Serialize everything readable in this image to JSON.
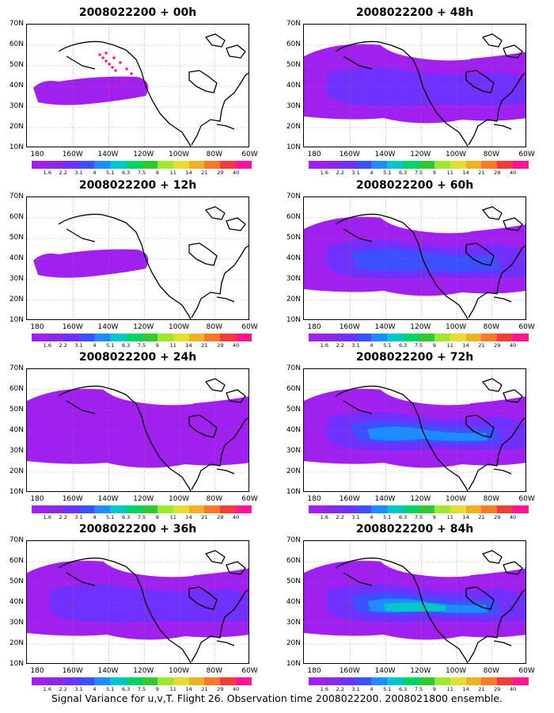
{
  "panels": [
    {
      "title": "2008022200 + 00h",
      "level": 0
    },
    {
      "title": "2008022200 + 48h",
      "level": 2
    },
    {
      "title": "2008022200 + 12h",
      "level": 0
    },
    {
      "title": "2008022200 + 60h",
      "level": 3
    },
    {
      "title": "2008022200 + 24h",
      "level": 1
    },
    {
      "title": "2008022200 + 72h",
      "level": 4
    },
    {
      "title": "2008022200 + 36h",
      "level": 2
    },
    {
      "title": "2008022200 + 84h",
      "level": 5
    }
  ],
  "lat_labels": [
    "70N",
    "60N",
    "50N",
    "40N",
    "30N",
    "20N",
    "10N"
  ],
  "lon_labels": [
    "180",
    "160W",
    "140W",
    "120W",
    "100W",
    "80W",
    "60W"
  ],
  "colorbar": {
    "labels": [
      "1.6",
      "2.2",
      "3.1",
      "4",
      "5.1",
      "6.3",
      "7.5",
      "9",
      "11",
      "14",
      "21",
      "29",
      "40"
    ],
    "colors": [
      "#a020f0",
      "#8a2be2",
      "#7030ff",
      "#3c50ff",
      "#1e8cff",
      "#00c8c8",
      "#00d264",
      "#32c832",
      "#a0e632",
      "#e6dc32",
      "#f0af28",
      "#fa7828",
      "#f03c3c",
      "#ff1493"
    ]
  },
  "caption": "Signal Variance for u,v,T. Flight 26. Observation time 2008022200. 2008021800 ensemble."
}
